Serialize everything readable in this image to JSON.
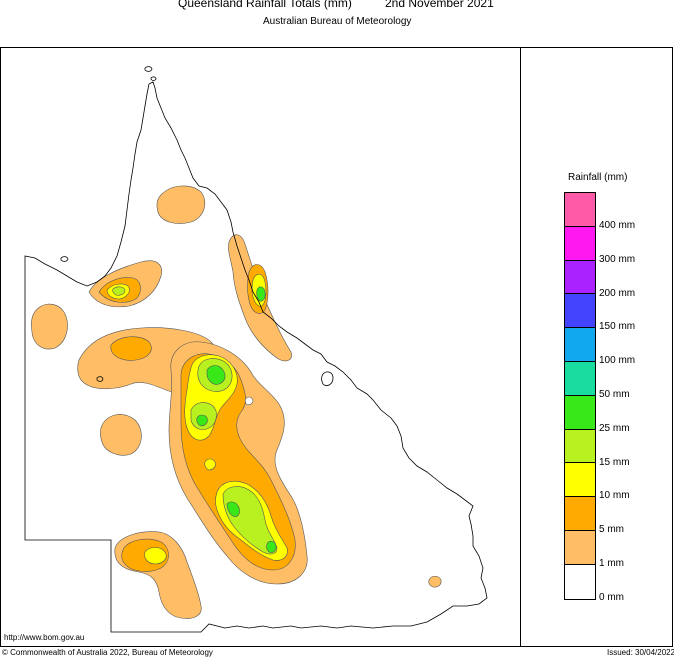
{
  "header": {
    "title": "Queensland Rainfall Totals (mm)",
    "date": "2nd November 2021",
    "subtitle": "Australian Bureau of Meteorology"
  },
  "legend": {
    "title": "Rainfall (mm)",
    "levels": [
      {
        "label": "400 mm",
        "color": "#ff5aa8"
      },
      {
        "label": "300 mm",
        "color": "#ff18f0"
      },
      {
        "label": "200 mm",
        "color": "#aa22ff"
      },
      {
        "label": "150 mm",
        "color": "#4444ff"
      },
      {
        "label": "100 mm",
        "color": "#12a8f0"
      },
      {
        "label": "50 mm",
        "color": "#18dca0"
      },
      {
        "label": "25 mm",
        "color": "#38e818"
      },
      {
        "label": "15 mm",
        "color": "#b8f020"
      },
      {
        "label": "10 mm",
        "color": "#ffff00"
      },
      {
        "label": "5 mm",
        "color": "#ffaa00"
      },
      {
        "label": "1 mm",
        "color": "#ffbe66"
      },
      {
        "label": "0 mm",
        "color": "#ffffff"
      }
    ]
  },
  "footer": {
    "url": "http://www.bom.gov.au",
    "copyright": "© Commonwealth of Australia 2022, Bureau of Meteorology",
    "issued": "Issued: 30/04/2022"
  }
}
